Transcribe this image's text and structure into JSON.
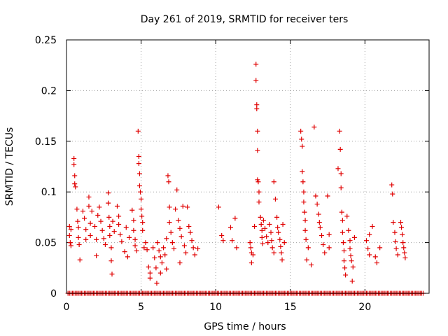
{
  "chart_data": {
    "type": "scatter",
    "title": "Day 261 of 2019, SRMTID for receiver ters",
    "xlabel": "GPS time / hours",
    "ylabel": "SRMTID / TECUs",
    "xlim": [
      0,
      24.3
    ],
    "ylim": [
      0,
      0.25
    ],
    "grid": true,
    "xticks": [
      0,
      5,
      10,
      15,
      20
    ],
    "xtick_labels": [
      "0",
      "5",
      "10",
      "15",
      "20"
    ],
    "yticks": [
      0,
      0.05,
      0.1,
      0.15,
      0.2,
      0.25
    ],
    "ytick_labels": [
      "0",
      "0.05",
      "0.1",
      "0.15",
      "0.2",
      "0.25"
    ],
    "series": [
      {
        "name": "SRMTID",
        "color": "#e00000",
        "marker": "plus",
        "points": [
          [
            0.2,
            0.066
          ],
          [
            0.2,
            0.057
          ],
          [
            0.25,
            0.05
          ],
          [
            0.3,
            0.063
          ],
          [
            0.3,
            0.047
          ],
          [
            0.5,
            0.133
          ],
          [
            0.5,
            0.127
          ],
          [
            0.55,
            0.108
          ],
          [
            0.55,
            0.116
          ],
          [
            0.6,
            0.105
          ],
          [
            0.7,
            0.083
          ],
          [
            0.75,
            0.071
          ],
          [
            0.8,
            0.065
          ],
          [
            0.8,
            0.055
          ],
          [
            0.85,
            0.048
          ],
          [
            0.9,
            0.033
          ],
          [
            1.1,
            0.081
          ],
          [
            1.2,
            0.074
          ],
          [
            1.3,
            0.063
          ],
          [
            1.3,
            0.053
          ],
          [
            1.5,
            0.095
          ],
          [
            1.5,
            0.086
          ],
          [
            1.6,
            0.069
          ],
          [
            1.6,
            0.057
          ],
          [
            1.7,
            0.081
          ],
          [
            1.9,
            0.066
          ],
          [
            2.0,
            0.053
          ],
          [
            2.1,
            0.077
          ],
          [
            2.2,
            0.085
          ],
          [
            2.3,
            0.071
          ],
          [
            2.4,
            0.062
          ],
          [
            2.5,
            0.054
          ],
          [
            2.6,
            0.048
          ],
          [
            2.8,
            0.099
          ],
          [
            2.8,
            0.089
          ],
          [
            2.85,
            0.075
          ],
          [
            2.9,
            0.066
          ],
          [
            2.9,
            0.057
          ],
          [
            3.0,
            0.045
          ],
          [
            3.0,
            0.032
          ],
          [
            3.05,
            0.019
          ],
          [
            3.1,
            0.071
          ],
          [
            3.2,
            0.061
          ],
          [
            3.4,
            0.086
          ],
          [
            3.5,
            0.076
          ],
          [
            3.5,
            0.068
          ],
          [
            3.6,
            0.058
          ],
          [
            3.7,
            0.051
          ],
          [
            3.9,
            0.041
          ],
          [
            4.0,
            0.065
          ],
          [
            4.2,
            0.055
          ],
          [
            4.4,
            0.082
          ],
          [
            4.5,
            0.072
          ],
          [
            4.5,
            0.062
          ],
          [
            4.6,
            0.053
          ],
          [
            4.6,
            0.047
          ],
          [
            4.7,
            0.042
          ],
          [
            4.8,
            0.16
          ],
          [
            4.85,
            0.135
          ],
          [
            4.85,
            0.128
          ],
          [
            4.9,
            0.118
          ],
          [
            4.9,
            0.106
          ],
          [
            4.95,
            0.1
          ],
          [
            5.0,
            0.093
          ],
          [
            5.0,
            0.083
          ],
          [
            5.05,
            0.076
          ],
          [
            5.1,
            0.07
          ],
          [
            5.1,
            0.062
          ],
          [
            5.2,
            0.045
          ],
          [
            5.4,
            0.043
          ],
          [
            5.5,
            0.026
          ],
          [
            5.6,
            0.02
          ],
          [
            5.6,
            0.015
          ],
          [
            5.8,
            0.045
          ],
          [
            5.9,
            0.035
          ],
          [
            6.0,
            0.025
          ],
          [
            6.05,
            0.01
          ],
          [
            6.1,
            0.05
          ],
          [
            6.2,
            0.042
          ],
          [
            6.3,
            0.036
          ],
          [
            6.4,
            0.03
          ],
          [
            6.5,
            0.045
          ],
          [
            6.6,
            0.038
          ],
          [
            6.7,
            0.024
          ],
          [
            6.7,
            0.054
          ],
          [
            6.8,
            0.116
          ],
          [
            6.85,
            0.11
          ],
          [
            6.9,
            0.085
          ],
          [
            6.9,
            0.07
          ],
          [
            7.0,
            0.06
          ],
          [
            7.1,
            0.05
          ],
          [
            7.2,
            0.044
          ],
          [
            7.3,
            0.083
          ],
          [
            7.4,
            0.102
          ],
          [
            7.5,
            0.072
          ],
          [
            7.6,
            0.064
          ],
          [
            7.7,
            0.056
          ],
          [
            7.8,
            0.086
          ],
          [
            7.9,
            0.047
          ],
          [
            8.0,
            0.04
          ],
          [
            8.1,
            0.085
          ],
          [
            8.2,
            0.066
          ],
          [
            8.3,
            0.06
          ],
          [
            8.4,
            0.052
          ],
          [
            8.5,
            0.045
          ],
          [
            8.6,
            0.038
          ],
          [
            8.8,
            0.044
          ],
          [
            10.2,
            0.085
          ],
          [
            10.4,
            0.057
          ],
          [
            10.5,
            0.052
          ],
          [
            11.0,
            0.065
          ],
          [
            11.1,
            0.052
          ],
          [
            11.3,
            0.074
          ],
          [
            11.4,
            0.045
          ],
          [
            12.3,
            0.05
          ],
          [
            12.35,
            0.045
          ],
          [
            12.4,
            0.04
          ],
          [
            12.4,
            0.03
          ],
          [
            12.5,
            0.038
          ],
          [
            12.6,
            0.066
          ],
          [
            12.7,
            0.226
          ],
          [
            12.7,
            0.21
          ],
          [
            12.75,
            0.186
          ],
          [
            12.75,
            0.182
          ],
          [
            12.8,
            0.16
          ],
          [
            12.8,
            0.141
          ],
          [
            12.8,
            0.112
          ],
          [
            12.85,
            0.11
          ],
          [
            12.9,
            0.1
          ],
          [
            12.9,
            0.09
          ],
          [
            13.0,
            0.075
          ],
          [
            13.05,
            0.068
          ],
          [
            13.1,
            0.062
          ],
          [
            13.1,
            0.055
          ],
          [
            13.15,
            0.049
          ],
          [
            13.2,
            0.072
          ],
          [
            13.3,
            0.064
          ],
          [
            13.4,
            0.056
          ],
          [
            13.5,
            0.05
          ],
          [
            13.6,
            0.068
          ],
          [
            13.7,
            0.06
          ],
          [
            13.75,
            0.052
          ],
          [
            13.8,
            0.045
          ],
          [
            13.9,
            0.11
          ],
          [
            14.0,
            0.093
          ],
          [
            14.1,
            0.075
          ],
          [
            14.15,
            0.065
          ],
          [
            14.2,
            0.06
          ],
          [
            14.3,
            0.053
          ],
          [
            14.35,
            0.046
          ],
          [
            14.4,
            0.04
          ],
          [
            14.45,
            0.033
          ],
          [
            14.5,
            0.068
          ],
          [
            15.7,
            0.16
          ],
          [
            15.75,
            0.152
          ],
          [
            15.8,
            0.145
          ],
          [
            15.8,
            0.12
          ],
          [
            15.85,
            0.11
          ],
          [
            15.9,
            0.1
          ],
          [
            15.9,
            0.09
          ],
          [
            15.95,
            0.08
          ],
          [
            16.0,
            0.072
          ],
          [
            16.0,
            0.062
          ],
          [
            16.05,
            0.053
          ],
          [
            16.1,
            0.033
          ],
          [
            16.2,
            0.045
          ],
          [
            16.4,
            0.028
          ],
          [
            16.6,
            0.164
          ],
          [
            16.7,
            0.096
          ],
          [
            16.8,
            0.088
          ],
          [
            16.9,
            0.078
          ],
          [
            16.95,
            0.07
          ],
          [
            17.0,
            0.065
          ],
          [
            17.1,
            0.057
          ],
          [
            17.2,
            0.048
          ],
          [
            17.3,
            0.04
          ],
          [
            17.5,
            0.096
          ],
          [
            17.6,
            0.058
          ],
          [
            18.2,
            0.123
          ],
          [
            18.3,
            0.16
          ],
          [
            18.35,
            0.142
          ],
          [
            18.4,
            0.118
          ],
          [
            18.4,
            0.104
          ],
          [
            18.45,
            0.08
          ],
          [
            18.5,
            0.072
          ],
          [
            18.5,
            0.06
          ],
          [
            18.55,
            0.05
          ],
          [
            18.6,
            0.042
          ],
          [
            18.6,
            0.032
          ],
          [
            18.65,
            0.025
          ],
          [
            18.7,
            0.018
          ],
          [
            18.8,
            0.076
          ],
          [
            18.9,
            0.062
          ],
          [
            19.0,
            0.052
          ],
          [
            19.0,
            0.044
          ],
          [
            19.05,
            0.037
          ],
          [
            19.1,
            0.032
          ],
          [
            19.15,
            0.012
          ],
          [
            19.2,
            0.026
          ],
          [
            20.1,
            0.052
          ],
          [
            20.2,
            0.044
          ],
          [
            20.3,
            0.038
          ],
          [
            20.3,
            0.058
          ],
          [
            20.5,
            0.066
          ],
          [
            20.7,
            0.036
          ],
          [
            20.8,
            0.03
          ],
          [
            21.8,
            0.107
          ],
          [
            21.85,
            0.098
          ],
          [
            21.9,
            0.07
          ],
          [
            22.0,
            0.06
          ],
          [
            22.05,
            0.051
          ],
          [
            22.1,
            0.044
          ],
          [
            22.2,
            0.038
          ],
          [
            22.4,
            0.07
          ],
          [
            22.45,
            0.065
          ],
          [
            22.5,
            0.058
          ],
          [
            22.55,
            0.05
          ],
          [
            22.6,
            0.045
          ],
          [
            22.65,
            0.04
          ],
          [
            22.7,
            0.035
          ],
          [
            2.0,
            0.037
          ],
          [
            4.1,
            0.036
          ],
          [
            5.3,
            0.05
          ],
          [
            6.3,
            0.02
          ],
          [
            7.6,
            0.03
          ],
          [
            13.9,
            0.04
          ],
          [
            14.6,
            0.05
          ],
          [
            17.6,
            0.045
          ],
          [
            19.3,
            0.055
          ],
          [
            21.0,
            0.045
          ]
        ],
        "zero_points": [
          0.1,
          0.2,
          0.3,
          0.4,
          0.5,
          0.6,
          0.7,
          0.8,
          0.9,
          1.0,
          1.1,
          1.2,
          1.3,
          1.4,
          1.5,
          1.6,
          1.7,
          1.8,
          1.9,
          2.0,
          2.1,
          2.2,
          2.3,
          2.4,
          2.5,
          2.6,
          2.7,
          2.8,
          2.9,
          3.0,
          3.1,
          3.2,
          3.3,
          3.4,
          3.5,
          3.6,
          3.7,
          3.8,
          3.9,
          4.0,
          4.1,
          4.2,
          4.3,
          4.4,
          4.5,
          4.6,
          4.7,
          4.8,
          4.9,
          5.0,
          5.1,
          5.2,
          5.3,
          5.4,
          5.5,
          5.6,
          5.7,
          5.8,
          5.9,
          6.0,
          6.1,
          6.2,
          6.3,
          6.4,
          6.5,
          6.6,
          6.7,
          6.8,
          6.9,
          7.0,
          7.1,
          7.2,
          7.3,
          7.4,
          7.5,
          7.6,
          7.7,
          7.8,
          7.9,
          8.0,
          8.1,
          8.2,
          8.3,
          8.4,
          8.5,
          8.6,
          8.7,
          8.8,
          8.9,
          9.0,
          9.1,
          9.2,
          9.3,
          9.4,
          9.5,
          9.6,
          9.7,
          9.8,
          9.9,
          10.0,
          10.1,
          10.2,
          10.3,
          10.4,
          10.5,
          10.6,
          10.7,
          10.8,
          10.9,
          11.0,
          11.1,
          11.2,
          11.3,
          11.4,
          11.5,
          11.6,
          11.7,
          11.8,
          11.9,
          12.0,
          12.1,
          12.2,
          12.3,
          12.4,
          12.5,
          12.6,
          12.7,
          12.8,
          12.9,
          13.0,
          13.1,
          13.2,
          13.3,
          13.4,
          13.5,
          13.6,
          13.7,
          13.8,
          13.9,
          14.0,
          14.1,
          14.2,
          14.3,
          14.4,
          14.5,
          14.6,
          14.7,
          14.8,
          14.9,
          15.0,
          15.1,
          15.2,
          15.3,
          15.4,
          15.5,
          15.6,
          15.7,
          15.8,
          15.9,
          16.0,
          16.1,
          16.2,
          16.3,
          16.4,
          16.5,
          16.6,
          16.7,
          16.8,
          16.9,
          17.0,
          17.1,
          17.2,
          17.3,
          17.4,
          17.5,
          17.6,
          17.7,
          17.8,
          17.9,
          18.0,
          18.1,
          18.2,
          18.3,
          18.4,
          18.5,
          18.6,
          18.7,
          18.8,
          18.9,
          19.0,
          19.1,
          19.2,
          19.3,
          19.4,
          19.5,
          19.6,
          19.7,
          19.8,
          19.9,
          20.0,
          20.1,
          20.2,
          20.3,
          20.4,
          20.5,
          20.6,
          20.7,
          20.8,
          20.9,
          21.0,
          21.1,
          21.2,
          21.3,
          21.4,
          21.5,
          21.6,
          21.7,
          21.8,
          21.9,
          22.0,
          22.1,
          22.2,
          22.3,
          22.4,
          22.5,
          22.6,
          22.7,
          22.8,
          22.9,
          23.0,
          23.1,
          23.2,
          23.3,
          23.4,
          23.5,
          23.6,
          23.7,
          23.8,
          23.9
        ]
      }
    ]
  }
}
